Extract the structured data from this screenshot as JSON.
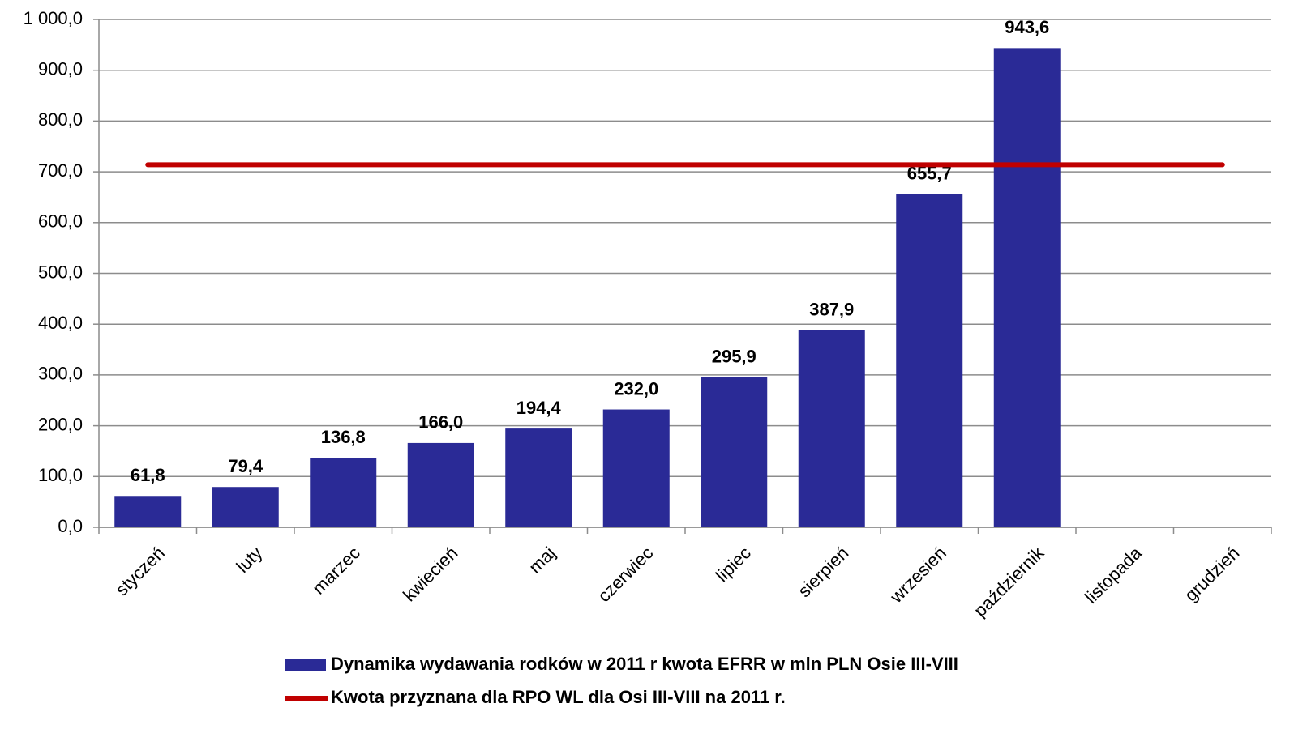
{
  "chart_data": {
    "type": "bar",
    "categories": [
      "styczeń",
      "luty",
      "marzec",
      "kwiecień",
      "maj",
      "czerwiec",
      "lipiec",
      "sierpień",
      "wrzesień",
      "październik",
      "listopada",
      "grudzień"
    ],
    "series": [
      {
        "name": "Dynamika wydawania   rodków w 2011 r  kwota EFRR w mln PLN Osie III-VIII",
        "type": "bar",
        "color": "#2a2a96",
        "values": [
          61.8,
          79.4,
          136.8,
          166.0,
          194.4,
          232.0,
          295.9,
          387.9,
          655.7,
          943.6,
          null,
          null
        ],
        "value_labels": [
          "61,8",
          "79,4",
          "136,8",
          "166,0",
          "194,4",
          "232,0",
          "295,9",
          "387,9",
          "655,7",
          "943,6",
          null,
          null
        ]
      },
      {
        "name": "Kwota przyznana dla RPO WL dla Osi III-VIII na 2011 r.",
        "type": "line",
        "color": "#c00000",
        "values": [
          714,
          714,
          714,
          714,
          714,
          714,
          714,
          714,
          714,
          714,
          714,
          714
        ]
      }
    ],
    "ylim": [
      0,
      1000
    ],
    "yticks": [
      {
        "value": 0,
        "label": "0,0"
      },
      {
        "value": 100,
        "label": "100,0"
      },
      {
        "value": 200,
        "label": "200,0"
      },
      {
        "value": 300,
        "label": "300,0"
      },
      {
        "value": 400,
        "label": "400,0"
      },
      {
        "value": 500,
        "label": "500,0"
      },
      {
        "value": 600,
        "label": "600,0"
      },
      {
        "value": 700,
        "label": "700,0"
      },
      {
        "value": 800,
        "label": "800,0"
      },
      {
        "value": 900,
        "label": "900,0"
      },
      {
        "value": 1000,
        "label": "1 000,0"
      }
    ],
    "grid": true
  }
}
